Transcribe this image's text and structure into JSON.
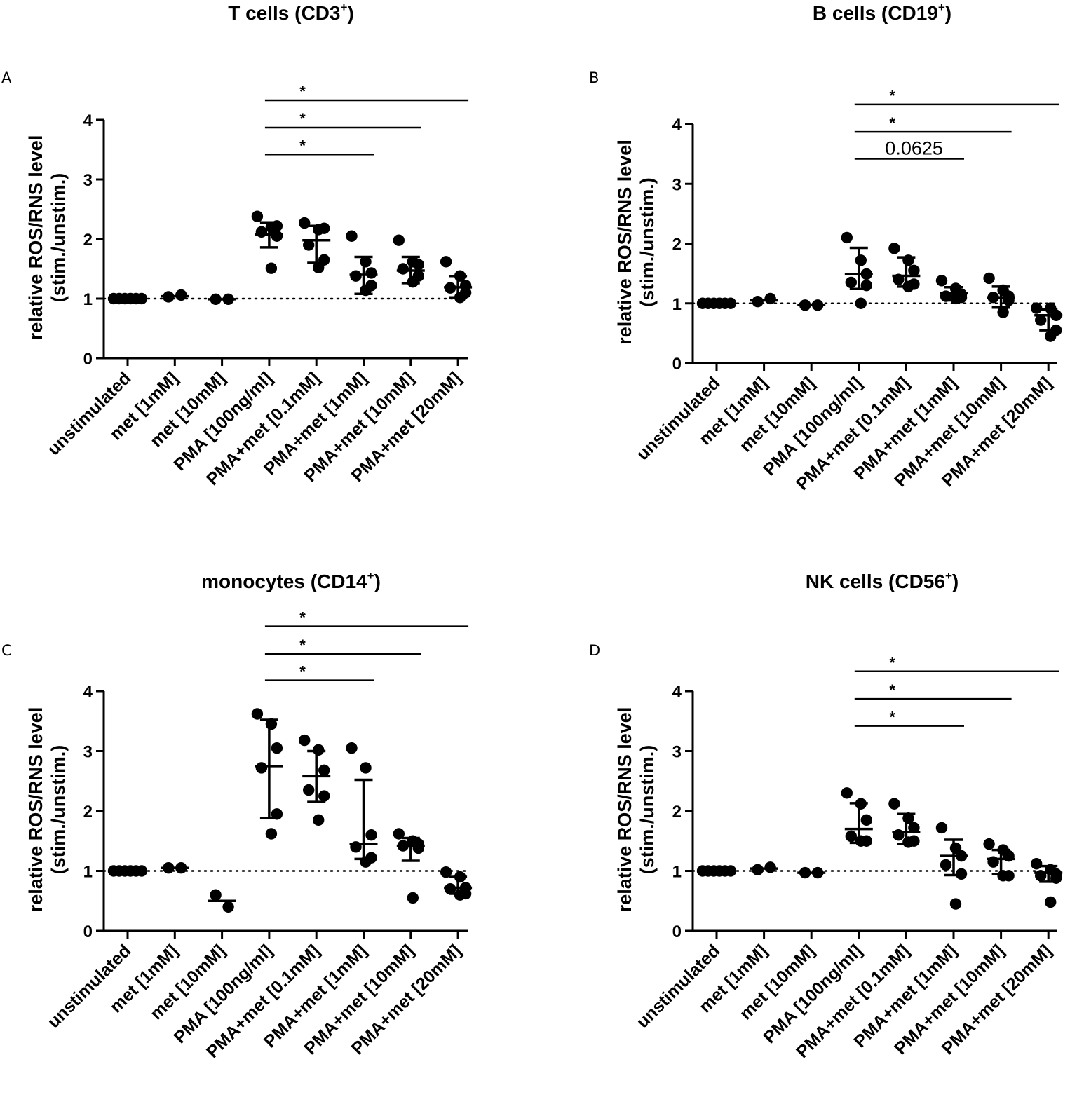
{
  "chart_data": [
    {
      "type": "scatter",
      "panel_letter": "A",
      "title": "T cells (CD3",
      "title_sup": "+",
      "title_close": ")",
      "ylabel": "relative ROS/RNS level",
      "ylabel2": "(stim./unstim.)",
      "ylim": [
        0,
        4
      ],
      "yticks": [
        0,
        1,
        2,
        3,
        4
      ],
      "reference_line": 1,
      "categories": [
        "unstimulated",
        "met [1mM]",
        "met [10mM]",
        "PMA [100ng/ml]",
        "PMA+met [0.1mM]",
        "PMA+met [1mM]",
        "PMA+met [10mM]",
        "PMA+met [20mM]"
      ],
      "points": [
        [
          1,
          1,
          1,
          1,
          1,
          1
        ],
        [
          1.03,
          1.06
        ],
        [
          0.99,
          0.99
        ],
        [
          2.38,
          2.2,
          2.05,
          2.12,
          2.22,
          1.51
        ],
        [
          2.27,
          2.16,
          2.18,
          1.9,
          1.65,
          1.52
        ],
        [
          2.05,
          1.62,
          1.43,
          1.38,
          1.22,
          1.14
        ],
        [
          1.98,
          1.62,
          1.57,
          1.5,
          1.38,
          1.28
        ],
        [
          1.62,
          1.38,
          1.22,
          1.18,
          1.1,
          1.02
        ]
      ],
      "center": [
        1,
        1.04,
        0.99,
        2.08,
        1.98,
        1.4,
        1.47,
        1.19
      ],
      "err_low": [
        1,
        1.04,
        0.99,
        1.86,
        1.6,
        1.08,
        1.26,
        1.02
      ],
      "err_high": [
        1,
        1.04,
        0.99,
        2.28,
        2.22,
        1.7,
        1.7,
        1.38
      ],
      "brackets": [
        {
          "from": 3,
          "to": 7,
          "y": 4.33,
          "label": "*"
        },
        {
          "from": 3,
          "to": 6,
          "y": 3.87,
          "label": "*"
        },
        {
          "from": 3,
          "to": 5,
          "y": 3.42,
          "label": "*"
        }
      ]
    },
    {
      "type": "scatter",
      "panel_letter": "B",
      "title": "B cells (CD19",
      "title_sup": "+",
      "title_close": ")",
      "ylabel": "relative ROS/RNS level",
      "ylabel2": "(stim./unstim.)",
      "ylim": [
        0,
        4
      ],
      "yticks": [
        0,
        1,
        2,
        3,
        4
      ],
      "reference_line": 1,
      "categories": [
        "unstimulated",
        "met [1mM]",
        "met [10mM]",
        "PMA [100ng/ml]",
        "PMA+met [0.1mM]",
        "PMA+met [1mM]",
        "PMA+met [10mM]",
        "PMA+met [20mM]"
      ],
      "points": [
        [
          1,
          1,
          1,
          1,
          1,
          1
        ],
        [
          1.03,
          1.08
        ],
        [
          0.97,
          0.97
        ],
        [
          2.1,
          1.72,
          1.49,
          1.35,
          1.3,
          1.0
        ],
        [
          1.92,
          1.72,
          1.55,
          1.4,
          1.32,
          1.28
        ],
        [
          1.38,
          1.25,
          1.15,
          1.12,
          1.1,
          1.08
        ],
        [
          1.42,
          1.22,
          1.12,
          1.1,
          1.05,
          0.85
        ],
        [
          0.92,
          0.92,
          0.8,
          0.72,
          0.55,
          0.45
        ]
      ],
      "center": [
        1,
        1.05,
        0.97,
        1.49,
        1.46,
        1.17,
        1.1,
        0.8
      ],
      "err_low": [
        1,
        1.05,
        0.97,
        1.24,
        1.28,
        1.05,
        0.93,
        0.55
      ],
      "err_high": [
        1,
        1.05,
        0.97,
        1.93,
        1.77,
        1.27,
        1.28,
        0.9
      ],
      "brackets": [
        {
          "from": 3,
          "to": 7,
          "y": 4.33,
          "label": "*"
        },
        {
          "from": 3,
          "to": 6,
          "y": 3.87,
          "label": "*"
        },
        {
          "from": 3,
          "to": 5,
          "y": 3.42,
          "label": "0.0625"
        }
      ]
    },
    {
      "type": "scatter",
      "panel_letter": "C",
      "title": "monocytes (CD14",
      "title_sup": "+",
      "title_close": ")",
      "ylabel": "relative ROS/RNS level",
      "ylabel2": "(stim./unstim.)",
      "ylim": [
        0,
        4
      ],
      "yticks": [
        0,
        1,
        2,
        3,
        4
      ],
      "reference_line": 1,
      "categories": [
        "unstimulated",
        "met [1mM]",
        "met [10mM]",
        "PMA [100ng/ml]",
        "PMA+met [0.1mM]",
        "PMA+met [1mM]",
        "PMA+met [10mM]",
        "PMA+met [20mM]"
      ],
      "points": [
        [
          1,
          1,
          1,
          1,
          1,
          1
        ],
        [
          1.05,
          1.05
        ],
        [
          0.6,
          0.4
        ],
        [
          3.62,
          3.45,
          3.05,
          2.72,
          1.95,
          1.62
        ],
        [
          3.18,
          3.02,
          2.68,
          2.35,
          2.25,
          1.85
        ],
        [
          3.05,
          2.72,
          1.6,
          1.4,
          1.22,
          1.15
        ],
        [
          1.62,
          1.5,
          1.45,
          1.42,
          1.38,
          0.55
        ],
        [
          0.98,
          0.9,
          0.72,
          0.7,
          0.62,
          0.6
        ]
      ],
      "center": [
        1,
        1.05,
        0.5,
        2.75,
        2.58,
        1.45,
        1.42,
        0.72
      ],
      "err_low": [
        1,
        1.05,
        0.5,
        1.88,
        2.15,
        1.2,
        1.17,
        0.62
      ],
      "err_high": [
        1,
        1.05,
        0.5,
        3.52,
        3.0,
        2.52,
        1.55,
        0.9
      ],
      "brackets": [
        {
          "from": 3,
          "to": 7,
          "y": 5.08,
          "label": "*"
        },
        {
          "from": 3,
          "to": 6,
          "y": 4.62,
          "label": "*"
        },
        {
          "from": 3,
          "to": 5,
          "y": 4.18,
          "label": "*"
        }
      ]
    },
    {
      "type": "scatter",
      "panel_letter": "D",
      "title": "NK cells (CD56",
      "title_sup": "+",
      "title_close": ")",
      "ylabel": "relative ROS/RNS level",
      "ylabel2": "(stim./unstim.)",
      "ylim": [
        0,
        4
      ],
      "yticks": [
        0,
        1,
        2,
        3,
        4
      ],
      "reference_line": 1,
      "categories": [
        "unstimulated",
        "met [1mM]",
        "met [10mM]",
        "PMA [100ng/ml]",
        "PMA+met [0.1mM]",
        "PMA+met [1mM]",
        "PMA+met [10mM]",
        "PMA+met [20mM]"
      ],
      "points": [
        [
          1,
          1,
          1,
          1,
          1,
          1
        ],
        [
          1.02,
          1.06
        ],
        [
          0.97,
          0.97
        ],
        [
          2.3,
          2.12,
          1.85,
          1.58,
          1.5,
          1.5
        ],
        [
          2.12,
          1.88,
          1.72,
          1.6,
          1.5,
          1.48
        ],
        [
          1.72,
          1.38,
          1.25,
          1.1,
          0.95,
          0.45
        ],
        [
          1.45,
          1.35,
          1.25,
          1.15,
          0.92,
          0.92
        ],
        [
          1.12,
          1.02,
          0.95,
          0.92,
          0.88,
          0.48
        ]
      ],
      "center": [
        1,
        1.04,
        0.97,
        1.7,
        1.65,
        1.25,
        1.2,
        0.97
      ],
      "err_low": [
        1,
        1.04,
        0.97,
        1.47,
        1.45,
        0.93,
        0.95,
        0.82
      ],
      "err_high": [
        1,
        1.04,
        0.97,
        2.13,
        1.95,
        1.52,
        1.35,
        1.08
      ],
      "brackets": [
        {
          "from": 3,
          "to": 7,
          "y": 4.33,
          "label": "*"
        },
        {
          "from": 3,
          "to": 6,
          "y": 3.87,
          "label": "*"
        },
        {
          "from": 3,
          "to": 5,
          "y": 3.42,
          "label": "*"
        }
      ]
    }
  ]
}
